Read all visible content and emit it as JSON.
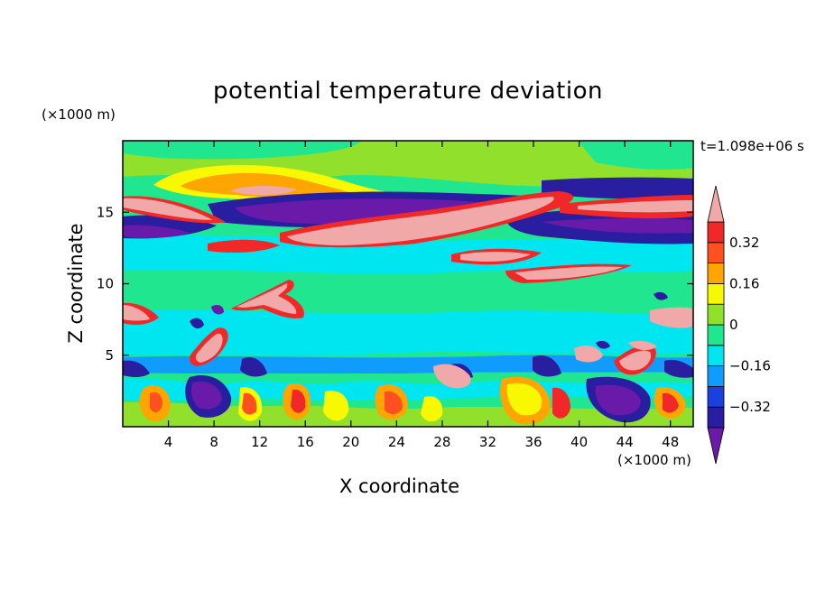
{
  "chart_data": {
    "type": "heatmap",
    "title": "potential temperature deviation",
    "xlabel": "X coordinate",
    "ylabel": "Z coordinate",
    "x_unit": "(×1000 m)",
    "y_unit": "(×1000 m)",
    "time_label": "t=1.098e+06 s",
    "xlim": [
      0,
      50
    ],
    "ylim": [
      0,
      20
    ],
    "x_ticks": [
      "4",
      "8",
      "12",
      "16",
      "20",
      "24",
      "28",
      "32",
      "36",
      "40",
      "44",
      "48"
    ],
    "x_tick_values": [
      4,
      8,
      12,
      16,
      20,
      24,
      28,
      32,
      36,
      40,
      44,
      48
    ],
    "y_ticks": [
      "5",
      "10",
      "15"
    ],
    "y_tick_values": [
      5,
      10,
      15
    ],
    "colorbar": {
      "levels": [
        -0.4,
        -0.32,
        -0.24,
        -0.16,
        -0.08,
        0,
        0.08,
        0.16,
        0.24,
        0.32,
        0.4
      ],
      "tick_labels": [
        "0.32",
        "0.16",
        "0",
        "−0.16",
        "−0.32"
      ],
      "tick_values": [
        0.32,
        0.16,
        0,
        -0.16,
        -0.32
      ],
      "colors": [
        "#6a1aa8",
        "#2a1ea0",
        "#1a40e0",
        "#109cff",
        "#00e6f0",
        "#20e690",
        "#90e02c",
        "#f8f800",
        "#ffa500",
        "#ff5020",
        "#f02828",
        "#f0a8a8"
      ],
      "extend": "both"
    }
  }
}
